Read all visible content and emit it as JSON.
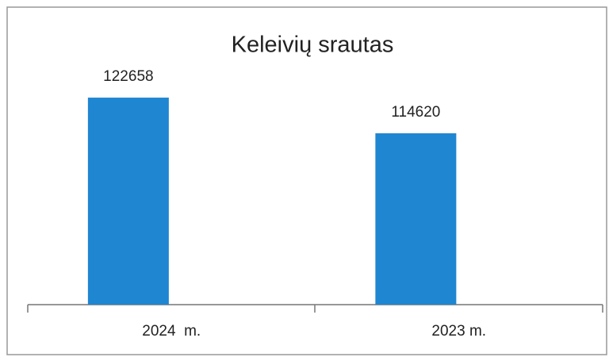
{
  "chart_data": {
    "type": "bar",
    "title": "Keleivių srautas",
    "categories": [
      "2024  m.",
      "2023 m."
    ],
    "values": [
      122658,
      114620
    ],
    "color": "#1f86d2",
    "ylim": [
      76000,
      130000
    ]
  }
}
